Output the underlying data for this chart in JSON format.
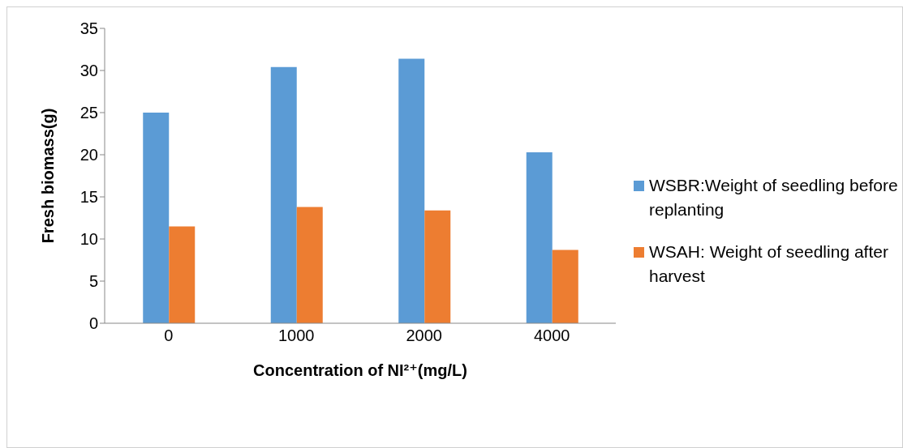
{
  "chart_data": {
    "type": "bar",
    "xlabel": "Concentration  of  NI²⁺(mg/L)",
    "ylabel": "Fresh biomass(g)",
    "categories": [
      "0",
      "1000",
      "2000",
      "4000"
    ],
    "series": [
      {
        "name": "WSBR:Weight of seedling before replanting",
        "color": "#5b9bd5",
        "values": [
          25.0,
          30.4,
          31.4,
          20.3
        ]
      },
      {
        "name": "WSAH: Weight of seedling after harvest",
        "color": "#ed7d31",
        "values": [
          11.5,
          13.8,
          13.4,
          8.7
        ]
      }
    ],
    "ylim": [
      0,
      35
    ],
    "yticks": [
      0,
      5,
      10,
      15,
      20,
      25,
      30,
      35
    ],
    "grid": false,
    "legend": "right"
  }
}
